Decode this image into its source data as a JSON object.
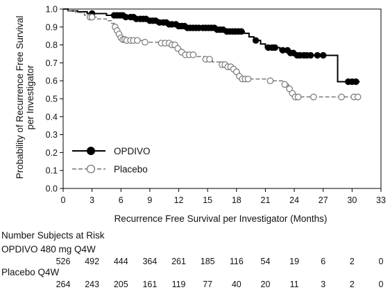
{
  "chart_data": {
    "type": "line",
    "subtype": "kaplan-meier",
    "xlabel": "Recurrence Free Survival per Investigator (Months)",
    "ylabel_lines": [
      "Probability of Recurrence Free Survival",
      "per Investigator"
    ],
    "xlim": [
      0,
      33
    ],
    "ylim": [
      0.0,
      1.0
    ],
    "x_ticks": [
      0,
      3,
      6,
      9,
      12,
      15,
      18,
      21,
      24,
      27,
      30,
      33
    ],
    "y_ticks": [
      "0.0",
      "0.1",
      "0.2",
      "0.3",
      "0.4",
      "0.5",
      "0.6",
      "0.7",
      "0.8",
      "0.9",
      "1.0"
    ],
    "grid": false,
    "legend_position": "lower-left",
    "series": [
      {
        "name": "OPDIVO",
        "color": "#000000",
        "line_style": "solid",
        "marker": "filled-circle",
        "steps": [
          [
            0,
            1.0
          ],
          [
            0.5,
            0.99
          ],
          [
            1.5,
            0.985
          ],
          [
            2.5,
            0.975
          ],
          [
            4.5,
            0.965
          ],
          [
            6.5,
            0.955
          ],
          [
            7.5,
            0.945
          ],
          [
            8.8,
            0.935
          ],
          [
            9.8,
            0.925
          ],
          [
            10.8,
            0.915
          ],
          [
            11.8,
            0.905
          ],
          [
            12.8,
            0.895
          ],
          [
            15.8,
            0.885
          ],
          [
            16.8,
            0.875
          ],
          [
            18.8,
            0.865
          ],
          [
            19.3,
            0.845
          ],
          [
            19.8,
            0.825
          ],
          [
            20.5,
            0.805
          ],
          [
            21.0,
            0.785
          ],
          [
            22.5,
            0.77
          ],
          [
            23.5,
            0.755
          ],
          [
            24.0,
            0.742
          ],
          [
            28.5,
            0.595
          ],
          [
            30.8,
            0.595
          ]
        ],
        "censor_x": [
          3.0,
          5.3,
          5.6,
          5.9,
          6.2,
          6.5,
          7.0,
          7.3,
          7.6,
          8.0,
          8.3,
          8.6,
          9.0,
          9.3,
          9.6,
          10.0,
          10.4,
          10.7,
          11.0,
          11.3,
          11.7,
          12.0,
          12.3,
          12.6,
          12.9,
          13.2,
          13.5,
          13.8,
          14.1,
          14.5,
          14.8,
          15.1,
          15.4,
          15.7,
          16.0,
          16.3,
          16.6,
          17.0,
          17.3,
          17.6,
          17.9,
          18.2,
          18.5,
          20.0,
          21.3,
          21.7,
          22.0,
          22.8,
          23.3,
          23.6,
          23.9,
          24.3,
          24.6,
          25.0,
          25.3,
          25.7,
          26.4,
          27.0,
          29.6,
          30.0,
          30.4
        ]
      },
      {
        "name": "Placebo",
        "color": "#777777",
        "line_style": "dashed",
        "marker": "open-circle",
        "steps": [
          [
            0,
            1.0
          ],
          [
            0.5,
            0.99
          ],
          [
            1.3,
            0.98
          ],
          [
            2.2,
            0.965
          ],
          [
            2.8,
            0.955
          ],
          [
            3.5,
            0.945
          ],
          [
            4.5,
            0.935
          ],
          [
            5.0,
            0.92
          ],
          [
            5.3,
            0.9
          ],
          [
            5.5,
            0.88
          ],
          [
            5.7,
            0.86
          ],
          [
            5.9,
            0.84
          ],
          [
            6.1,
            0.83
          ],
          [
            6.6,
            0.825
          ],
          [
            8.5,
            0.815
          ],
          [
            10.2,
            0.81
          ],
          [
            11.2,
            0.8
          ],
          [
            11.9,
            0.78
          ],
          [
            12.2,
            0.76
          ],
          [
            12.5,
            0.745
          ],
          [
            13.9,
            0.735
          ],
          [
            14.7,
            0.72
          ],
          [
            15.5,
            0.705
          ],
          [
            16.3,
            0.69
          ],
          [
            17.0,
            0.678
          ],
          [
            17.5,
            0.665
          ],
          [
            18.0,
            0.65
          ],
          [
            18.3,
            0.625
          ],
          [
            18.5,
            0.61
          ],
          [
            21.5,
            0.6
          ],
          [
            23.0,
            0.58
          ],
          [
            23.4,
            0.555
          ],
          [
            23.7,
            0.53
          ],
          [
            23.9,
            0.51
          ],
          [
            30.8,
            0.51
          ]
        ],
        "censor_x": [
          2.8,
          3.0,
          5.4,
          5.6,
          5.8,
          6.0,
          6.2,
          6.4,
          6.6,
          7.0,
          7.3,
          7.7,
          8.5,
          10.2,
          10.6,
          11.0,
          11.3,
          11.6,
          11.9,
          12.3,
          12.7,
          13.1,
          13.5,
          14.8,
          15.2,
          16.5,
          16.8,
          17.1,
          17.4,
          17.7,
          18.0,
          18.3,
          18.6,
          18.9,
          19.2,
          21.5,
          23.0,
          23.5,
          23.8,
          24.1,
          24.4,
          26.0,
          28.9,
          30.2,
          30.6
        ]
      }
    ]
  },
  "at_risk": {
    "header": "Number Subjects at Risk",
    "time_points": [
      0,
      3,
      6,
      9,
      12,
      15,
      18,
      21,
      24,
      27,
      30,
      33
    ],
    "groups": [
      {
        "label": "OPDIVO 480 mg Q4W",
        "counts": [
          "526",
          "492",
          "444",
          "364",
          "261",
          "185",
          "116",
          "54",
          "19",
          "6",
          "2",
          "0"
        ]
      },
      {
        "label": "Placebo Q4W",
        "counts": [
          "264",
          "243",
          "205",
          "161",
          "119",
          "77",
          "40",
          "20",
          "11",
          "3",
          "2",
          "0"
        ]
      }
    ]
  }
}
